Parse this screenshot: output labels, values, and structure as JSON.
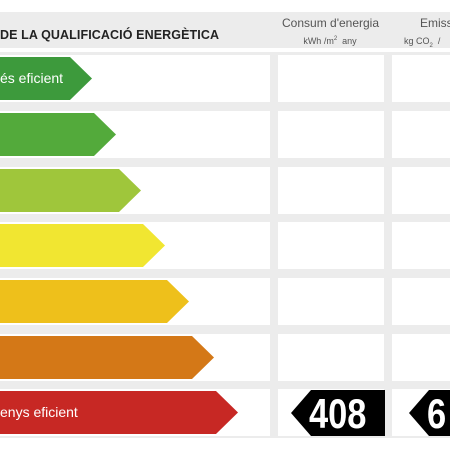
{
  "header": {
    "title": "DE LA QUALIFICACIÓ ENERGÈTICA",
    "col_energy": {
      "label": "Consum d'energia",
      "unit_pre": "kWh /m",
      "unit_sup": "2",
      "unit_post": "any"
    },
    "col_emissions": {
      "label": "Emissi",
      "unit_pre": "kg CO",
      "unit_sub": "2",
      "unit_post": "/"
    }
  },
  "colors": {
    "A": "#3d9a3c",
    "B": "#53aa3b",
    "C": "#9fc63b",
    "D": "#f1e631",
    "E": "#eec01b",
    "F": "#d47817",
    "G": "#c72824",
    "tag": "#000000"
  },
  "rows": [
    {
      "label": "és eficient",
      "color": "#3d9a3c"
    },
    {
      "label": "",
      "color": "#53aa3b"
    },
    {
      "label": "",
      "color": "#9fc63b"
    },
    {
      "label": "",
      "color": "#f1e631"
    },
    {
      "label": "",
      "color": "#eec01b"
    },
    {
      "label": "",
      "color": "#d47817"
    },
    {
      "label": "enys eficient",
      "color": "#c72824"
    }
  ],
  "values": {
    "energy": "408",
    "emissions": "6"
  }
}
